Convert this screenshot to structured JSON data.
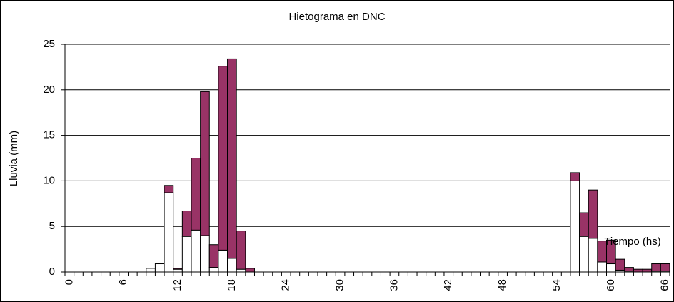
{
  "chart_data": {
    "type": "bar",
    "stacked": true,
    "title": "Hietograma en DNC",
    "y_label": "Lluvia (mm)",
    "annotation": "Tiempo (hs)",
    "categories": [
      "0",
      null,
      null,
      null,
      null,
      null,
      "6",
      null,
      null,
      null,
      null,
      null,
      "12",
      null,
      null,
      null,
      null,
      null,
      "18",
      null,
      null,
      null,
      null,
      null,
      "24",
      null,
      null,
      null,
      null,
      null,
      "30",
      null,
      null,
      null,
      null,
      null,
      "36",
      null,
      null,
      null,
      null,
      null,
      "42",
      null,
      null,
      null,
      null,
      null,
      "48",
      null,
      null,
      null,
      null,
      null,
      "54",
      null,
      null,
      null,
      null,
      null,
      "60",
      null,
      null,
      null,
      null,
      null,
      "66"
    ],
    "series": [
      {
        "color": "#ffffff",
        "values": [
          0,
          0,
          0,
          0,
          0,
          0,
          0,
          0,
          0,
          0.4,
          0.9,
          8.7,
          0.3,
          3.9,
          4.6,
          4.0,
          0.5,
          2.4,
          1.5,
          0.3,
          0,
          0,
          0,
          0,
          0,
          0,
          0,
          0,
          0,
          0,
          0,
          0,
          0,
          0,
          0,
          0,
          0,
          0,
          0,
          0,
          0,
          0,
          0,
          0,
          0,
          0,
          0,
          0,
          0,
          0,
          0,
          0,
          0,
          0,
          0,
          0,
          10.0,
          3.9,
          3.7,
          1.1,
          0.9,
          0.2,
          0.1,
          0,
          0,
          0.1,
          0.1
        ]
      },
      {
        "color": "#993366",
        "values": [
          0,
          0,
          0,
          0,
          0,
          0,
          0,
          0,
          0,
          0,
          0,
          0.8,
          0.1,
          2.8,
          7.9,
          15.8,
          2.5,
          20.2,
          21.9,
          4.2,
          0.4,
          0,
          0,
          0,
          0,
          0,
          0,
          0,
          0,
          0,
          0,
          0,
          0,
          0,
          0,
          0,
          0,
          0,
          0,
          0,
          0,
          0,
          0,
          0,
          0,
          0,
          0,
          0,
          0,
          0,
          0,
          0,
          0,
          0,
          0,
          0,
          0.9,
          2.6,
          5.3,
          2.3,
          2.6,
          1.2,
          0.4,
          0.3,
          0.3,
          0.8,
          0.8
        ]
      }
    ],
    "ylim": [
      0,
      25
    ],
    "yticks": [
      0,
      5,
      10,
      15,
      20,
      25
    ],
    "grid": true
  }
}
